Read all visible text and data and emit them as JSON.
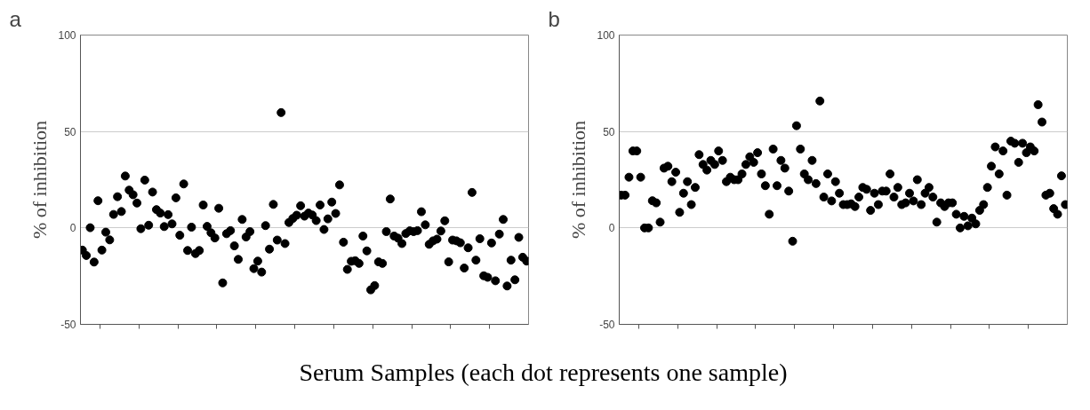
{
  "chart_data": [
    {
      "type": "scatter",
      "title": "a",
      "ylabel": "% of inhibition",
      "xlabel": "Serum Samples (each dot represents one sample)",
      "marker": "circle",
      "grid": "y",
      "tick_labels": "y",
      "ylim": [
        -50,
        100
      ],
      "yticks": [
        -50,
        0,
        50,
        100
      ],
      "categories": [
        null,
        null,
        null,
        null,
        null,
        null,
        null,
        null,
        null,
        null,
        null,
        null,
        null,
        null,
        null,
        null,
        null,
        null,
        null,
        null,
        null,
        null,
        null,
        null,
        null,
        null,
        null,
        null,
        null,
        null,
        null,
        null,
        null,
        null,
        null,
        null,
        null,
        null,
        null,
        null,
        null,
        null,
        null,
        null,
        null,
        null,
        null,
        null,
        null,
        null,
        null,
        null,
        null,
        null,
        null,
        null,
        null,
        null,
        null,
        null,
        null,
        null,
        null,
        null,
        null,
        null,
        null,
        null,
        null,
        null,
        null,
        null,
        null,
        null,
        null,
        null,
        null,
        null,
        null,
        null,
        null,
        null,
        null,
        null,
        null,
        null,
        null,
        null,
        null,
        null,
        null,
        null,
        null,
        null,
        null,
        null,
        null,
        null,
        null,
        null,
        null,
        null,
        null,
        null,
        null,
        null,
        null,
        null,
        null,
        null,
        null,
        null,
        null,
        null,
        null
      ],
      "series": [
        {
          "color": "#000000",
          "values": [
            -11.5,
            -14.3,
            0.1,
            -17.7,
            14.1,
            -11.5,
            -2.2,
            -6.2,
            7.0,
            16.2,
            8.5,
            26.9,
            19.6,
            17.2,
            12.9,
            -0.4,
            24.8,
            1.4,
            18.6,
            9.5,
            7.7,
            0.7,
            6.9,
            2.1,
            15.6,
            -3.8,
            22.8,
            -11.7,
            0.4,
            -13.3,
            -11.7,
            11.9,
            0.8,
            -2.5,
            -5.2,
            10.2,
            -28.5,
            -3.0,
            -1.4,
            -9.3,
            -16.3,
            4.4,
            -4.7,
            -1.9,
            -21.1,
            -17.2,
            -22.9,
            1.2,
            -11.0,
            12.2,
            -6.3,
            59.8,
            -8.1,
            2.8,
            4.9,
            6.6,
            11.5,
            6.1,
            7.7,
            6.7,
            3.8,
            11.9,
            -0.8,
            4.7,
            13.4,
            7.5,
            22.3,
            -7.4,
            -21.5,
            -17.3,
            -17.0,
            -18.4,
            -4.2,
            -11.9,
            -32.1,
            -29.9,
            -17.6,
            -18.4,
            -1.9,
            15.0,
            -4.2,
            -5.3,
            -8.1,
            -2.9,
            -1.5,
            -1.9,
            -1.4,
            8.4,
            1.6,
            -8.5,
            -6.7,
            -5.8,
            -1.6,
            3.7,
            -17.6,
            -6.3,
            -6.7,
            -7.7,
            -20.8,
            -10.3,
            18.4,
            -16.7,
            -5.6,
            -24.8,
            -25.6,
            -7.8,
            -27.4,
            -3.2,
            4.4,
            -30.1,
            -16.7,
            -26.9,
            -4.9,
            -15.2,
            -17.2
          ]
        }
      ]
    },
    {
      "type": "scatter",
      "title": "b",
      "ylabel": "% of inhibition",
      "marker": "circle",
      "grid": "y",
      "tick_labels": "y",
      "ylim": [
        -50,
        100
      ],
      "yticks": [
        -50,
        0,
        50,
        100
      ],
      "categories": [
        null,
        null,
        null,
        null,
        null,
        null,
        null,
        null,
        null,
        null,
        null,
        null,
        null,
        null,
        null,
        null,
        null,
        null,
        null,
        null,
        null,
        null,
        null,
        null,
        null,
        null,
        null,
        null,
        null,
        null,
        null,
        null,
        null,
        null,
        null,
        null,
        null,
        null,
        null,
        null,
        null,
        null,
        null,
        null,
        null,
        null,
        null,
        null,
        null,
        null,
        null,
        null,
        null,
        null,
        null,
        null,
        null,
        null,
        null,
        null,
        null,
        null,
        null,
        null,
        null,
        null,
        null,
        null,
        null,
        null,
        null,
        null,
        null,
        null,
        null,
        null,
        null,
        null,
        null,
        null,
        null,
        null,
        null,
        null,
        null,
        null,
        null,
        null,
        null,
        null,
        null,
        null,
        null,
        null,
        null,
        null,
        null,
        null,
        null,
        null,
        null,
        null,
        null,
        null,
        null,
        null,
        null,
        null,
        null,
        null,
        null,
        null,
        null,
        null,
        null
      ],
      "series": [
        {
          "color": "#000000",
          "values": [
            17.0,
            17.0,
            26.3,
            39.9,
            39.9,
            26.3,
            0.0,
            0.0,
            14.1,
            13.0,
            3.0,
            31.0,
            32.0,
            24.0,
            28.9,
            8.1,
            18.0,
            24.0,
            12.1,
            21.0,
            38.0,
            32.9,
            30.0,
            35.0,
            32.9,
            39.9,
            35.0,
            24.0,
            26.3,
            25.0,
            25.0,
            28.0,
            32.9,
            36.9,
            34.0,
            39.0,
            28.0,
            21.9,
            7.1,
            40.9,
            21.9,
            35.0,
            31.0,
            19.1,
            -6.9,
            53.0,
            40.9,
            28.0,
            25.0,
            35.0,
            23.0,
            65.8,
            16.0,
            28.0,
            14.0,
            24.0,
            18.0,
            12.1,
            12.1,
            12.5,
            11.1,
            16.0,
            21.0,
            20.0,
            9.1,
            18.0,
            12.1,
            19.1,
            19.1,
            28.0,
            16.0,
            21.0,
            12.1,
            13.0,
            18.0,
            14.0,
            25.0,
            12.1,
            18.0,
            21.0,
            16.0,
            3.0,
            13.0,
            11.1,
            13.0,
            13.0,
            7.1,
            0.0,
            6.0,
            1.1,
            5.1,
            2.1,
            9.1,
            12.1,
            21.0,
            32.0,
            42.0,
            28.0,
            39.9,
            17.0,
            45.0,
            43.9,
            34.0,
            43.9,
            39.0,
            42.0,
            39.9,
            63.9,
            54.9,
            17.0,
            18.0,
            10.0,
            7.1,
            27.0,
            12.1
          ]
        }
      ]
    }
  ]
}
